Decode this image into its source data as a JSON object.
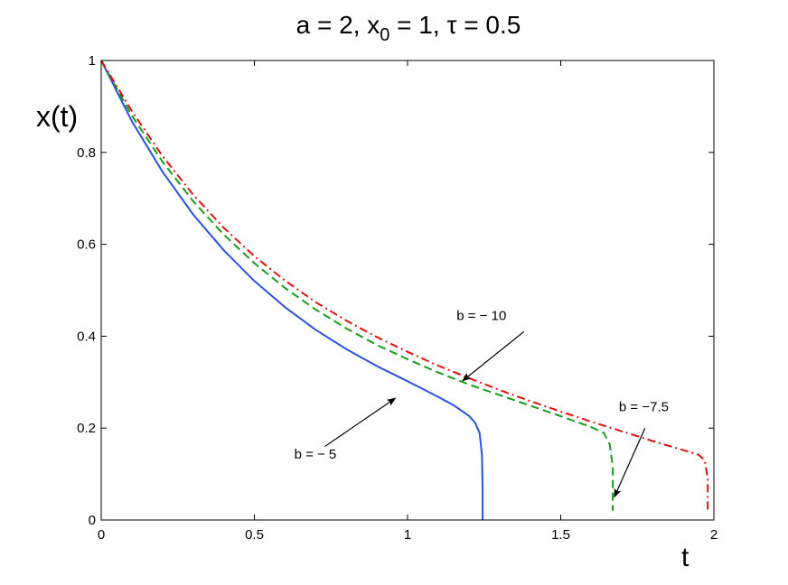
{
  "chart_data": {
    "type": "line",
    "title": {
      "parts": [
        {
          "text": "a = 2, x",
          "style": "normal"
        },
        {
          "text": "0",
          "style": "sub"
        },
        {
          "text": " = 1, ",
          "style": "normal"
        },
        {
          "text": "τ",
          "style": "normal"
        },
        {
          "text": " = 0.5",
          "style": "normal"
        }
      ]
    },
    "xlabel": "t",
    "ylabel": "x(t)",
    "xlim": [
      0,
      2
    ],
    "ylim": [
      0,
      1
    ],
    "xticks": [
      0,
      0.5,
      1,
      1.5,
      2
    ],
    "xtick_labels": [
      "0",
      "0.5",
      "1",
      "1.5",
      "2"
    ],
    "yticks": [
      0,
      0.2,
      0.4,
      0.6,
      0.8,
      1
    ],
    "ytick_labels": [
      "0",
      "0.2",
      "0.4",
      "0.6",
      "0.8",
      "1"
    ],
    "grid": false,
    "series": [
      {
        "color": "#2a52e0",
        "dash": "solid",
        "x": [
          0,
          0.1,
          0.2,
          0.3,
          0.4,
          0.5,
          0.6,
          0.7,
          0.8,
          0.9,
          1.0,
          1.05,
          1.1,
          1.15,
          1.2,
          1.22,
          1.235,
          1.243,
          1.245,
          1.245
        ],
        "y": [
          1.0,
          0.868,
          0.758,
          0.665,
          0.587,
          0.52,
          0.463,
          0.414,
          0.372,
          0.335,
          0.302,
          0.285,
          0.268,
          0.25,
          0.227,
          0.212,
          0.19,
          0.14,
          0.06,
          0.0
        ]
      },
      {
        "color": "#1a9a1a",
        "dash": "dashed",
        "x": [
          0,
          0.1,
          0.2,
          0.3,
          0.4,
          0.5,
          0.6,
          0.7,
          0.8,
          0.9,
          1.0,
          1.1,
          1.2,
          1.3,
          1.4,
          1.5,
          1.6,
          1.64,
          1.66,
          1.67,
          1.67
        ],
        "y": [
          1.0,
          0.88,
          0.78,
          0.694,
          0.621,
          0.559,
          0.505,
          0.458,
          0.417,
          0.381,
          0.35,
          0.321,
          0.295,
          0.272,
          0.249,
          0.226,
          0.202,
          0.19,
          0.165,
          0.115,
          0.02
        ]
      },
      {
        "color": "#e01010",
        "dash": "dashdot",
        "x": [
          0,
          0.1,
          0.2,
          0.3,
          0.4,
          0.5,
          0.6,
          0.7,
          0.8,
          0.9,
          1.0,
          1.1,
          1.2,
          1.3,
          1.4,
          1.5,
          1.6,
          1.7,
          1.8,
          1.9,
          1.95,
          1.97,
          1.98,
          1.98
        ],
        "y": [
          1.0,
          0.89,
          0.792,
          0.708,
          0.636,
          0.574,
          0.521,
          0.474,
          0.434,
          0.398,
          0.366,
          0.336,
          0.309,
          0.283,
          0.259,
          0.236,
          0.214,
          0.193,
          0.172,
          0.152,
          0.142,
          0.13,
          0.09,
          0.02
        ]
      }
    ],
    "annotations": [
      {
        "text": "b = − 10",
        "text_x": 1.16,
        "text_y": 0.435,
        "tip_x": 1.18,
        "tip_y": 0.303,
        "arrow_from_x": 1.38,
        "arrow_from_y": 0.41
      },
      {
        "text": "b = −7.5",
        "text_x": 1.69,
        "text_y": 0.237,
        "tip_x": 1.675,
        "tip_y": 0.05,
        "arrow_from_x": 1.775,
        "arrow_from_y": 0.2
      },
      {
        "text": "b = − 5",
        "text_x": 0.63,
        "text_y": 0.134,
        "tip_x": 0.96,
        "tip_y": 0.265,
        "arrow_from_x": 0.73,
        "arrow_from_y": 0.16
      }
    ]
  }
}
